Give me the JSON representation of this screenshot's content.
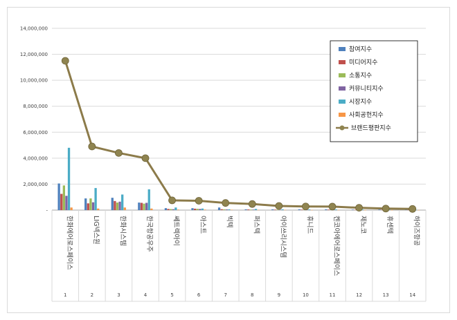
{
  "chart_data": {
    "type": "bar",
    "title": "",
    "xlabel": "",
    "ylabel": "",
    "ylim": [
      0,
      14000000
    ],
    "yticks": [
      "-",
      "2,000,000",
      "4,000,000",
      "6,000,000",
      "8,000,000",
      "10,000,000",
      "12,000,000",
      "14,000,000"
    ],
    "grid": true,
    "legend_position": "top-right",
    "categories": [
      "한화에어로스페이스",
      "LIG넥스원",
      "한화시스템",
      "한국항공우주",
      "쎄트렉아이",
      "아스트",
      "빅텍",
      "퍼스텍",
      "아이쓰리시스템",
      "휴니드",
      "켄코아에어로스페이스",
      "제노코",
      "휴센텍",
      "하이즈항공"
    ],
    "category_numbers": [
      "1",
      "2",
      "3",
      "4",
      "5",
      "6",
      "7",
      "8",
      "9",
      "10",
      "11",
      "12",
      "13",
      "14"
    ],
    "series": [
      {
        "name": "참여지수",
        "color": "#4f81bd",
        "values": [
          2050000,
          900000,
          950000,
          580000,
          150000,
          150000,
          200000,
          60000,
          60000,
          60000,
          60000,
          40000,
          40000,
          30000
        ]
      },
      {
        "name": "미디어지수",
        "color": "#c0504d",
        "values": [
          1250000,
          520000,
          700000,
          560000,
          90000,
          110000,
          70000,
          50000,
          40000,
          40000,
          40000,
          30000,
          25000,
          20000
        ]
      },
      {
        "name": "소통지수",
        "color": "#9bbb59",
        "values": [
          1900000,
          900000,
          580000,
          500000,
          80000,
          100000,
          60000,
          40000,
          40000,
          30000,
          30000,
          25000,
          20000,
          15000
        ]
      },
      {
        "name": "커뮤니티지수",
        "color": "#8064a2",
        "values": [
          1100000,
          600000,
          650000,
          560000,
          70000,
          90000,
          50000,
          40000,
          30000,
          30000,
          25000,
          20000,
          20000,
          15000
        ]
      },
      {
        "name": "시장지수",
        "color": "#4bacc6",
        "values": [
          4800000,
          1700000,
          1200000,
          1600000,
          200000,
          120000,
          60000,
          90000,
          60000,
          50000,
          50000,
          40000,
          30000,
          20000
        ]
      },
      {
        "name": "사회공헌지수",
        "color": "#f79646",
        "values": [
          200000,
          120000,
          200000,
          120000,
          40000,
          40000,
          30000,
          20000,
          20000,
          15000,
          15000,
          10000,
          10000,
          10000
        ]
      }
    ],
    "line_series": {
      "name": "브랜드평판지수",
      "color": "#8c7b4a",
      "values": [
        11500000,
        4900000,
        4400000,
        4000000,
        750000,
        720000,
        550000,
        470000,
        320000,
        280000,
        270000,
        180000,
        120000,
        90000
      ]
    }
  }
}
